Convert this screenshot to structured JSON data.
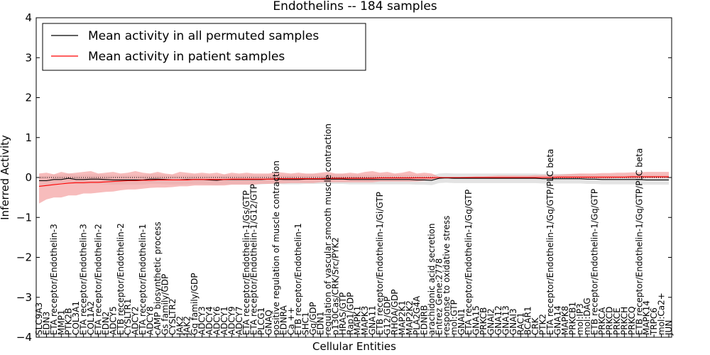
{
  "chart_data": {
    "type": "line",
    "title": "Endothelins -- 184 samples",
    "xlabel": "Cellular Entities",
    "ylabel": "Inferred Activity",
    "ylim": [
      -4,
      4
    ],
    "yticks": [
      -4,
      -3,
      -2,
      -1,
      0,
      1,
      2,
      3,
      4
    ],
    "grid": false,
    "zero_line": "dotted",
    "legend": "top-left",
    "categories": [
      "SLC9A3",
      "EDN3",
      "ETA receptor/Endothelin-3",
      "MMP1",
      "PTK2B",
      "COL3A1",
      "ETA receptor/Endothelin-3",
      "COL1A2",
      "ETA receptor/Endothelin-2",
      "EDN2",
      "ADCY5",
      "ETB receptor/Endothelin-2",
      "CYSLTR1",
      "ADCY2",
      "ETA receptor/Endothelin-1",
      "ADCY8",
      "cAMP biosynthetic process",
      "Gs family/GDP",
      "CYSLTR2",
      "JAK2",
      "JAK2",
      "Gq family/GDP",
      "ADCY3",
      "ADCY4",
      "ADCY6",
      "ADCY1",
      "ADCY9",
      "ADCY7",
      "ETA receptor/Endothelin-1/Gs/GTP",
      "ETA receptor/Endothelin-1/G12/GTP",
      "PLCG1",
      "GNAQ",
      "positive regulation of muscle contraction",
      "EDNRA",
      "Ca ++",
      "ETB receptor/Endothelin-1",
      "SHC1",
      "Gq/GDP",
      "EDN1",
      "regulation of vascular smooth muscle contraction",
      "p130Cas/CRK/Src/PYK2",
      "HRAS/GTP",
      "Rap1/GDP",
      "MAPK1",
      "MAPK3",
      "GNA11",
      "ETB receptor/Endothelin-1/Gi/GTP",
      "G12/GDP",
      "RHOA/GDP",
      "MAP2K1",
      "MAP2K2",
      "PLA2G4A",
      "EDNRB",
      "arachidonic acid secretion",
      "Entrez Gene:2778",
      "response to oxidative stress",
      "mol:GTP",
      "GNAI1",
      "ETA receptor/Endothelin-1/Gq/GTP",
      "GNA15",
      "PRKCB",
      "GNAI2",
      "GNA12",
      "GNA13",
      "GNAI3",
      "RAC1",
      "BCAR1",
      "CRK",
      "PTK2",
      "ETA receptor/Endothelin-1/Gq/GTP/PLC beta",
      "GNA14",
      "MAPK8",
      "PRKCB1",
      "mol:IP3",
      "mol:DAG",
      "ETB receptor/Endothelin-1/Gq/GTP",
      "PRKCA",
      "PRKCD",
      "PRKCE",
      "PRKCH",
      "PRKCQ",
      "ETB receptor/Endothelin-1/Gq/GTP/PLC beta",
      "MAPK14",
      "TRPC6",
      "mol:Ca2+",
      "JUN"
    ],
    "series": [
      {
        "name": "Mean activity in all permuted samples",
        "color": "#000000",
        "band_color": "#d0d0d0",
        "values": [
          -0.08,
          -0.08,
          -0.05,
          -0.05,
          -0.02,
          -0.05,
          -0.05,
          -0.04,
          -0.04,
          -0.05,
          -0.06,
          -0.06,
          -0.06,
          -0.06,
          -0.06,
          -0.04,
          -0.04,
          -0.05,
          -0.06,
          -0.06,
          -0.05,
          -0.05,
          -0.05,
          -0.06,
          -0.07,
          -0.05,
          -0.05,
          -0.05,
          -0.05,
          -0.05,
          -0.05,
          -0.04,
          -0.04,
          -0.05,
          -0.05,
          -0.05,
          -0.04,
          -0.04,
          -0.04,
          -0.04,
          -0.04,
          -0.04,
          -0.05,
          -0.05,
          -0.05,
          -0.05,
          -0.05,
          -0.05,
          -0.05,
          -0.05,
          -0.05,
          -0.06,
          -0.06,
          -0.07,
          -0.02,
          -0.01,
          -0.02,
          -0.02,
          -0.02,
          -0.02,
          -0.02,
          -0.02,
          -0.02,
          -0.02,
          -0.02,
          -0.02,
          -0.02,
          -0.02,
          -0.03,
          -0.03,
          -0.03,
          -0.03,
          -0.03,
          -0.03,
          -0.04,
          -0.04,
          -0.05,
          -0.05,
          -0.05,
          -0.05,
          -0.05,
          -0.05,
          -0.06,
          -0.06,
          -0.06,
          -0.06
        ],
        "band": 0.12
      },
      {
        "name": "Mean activity in patient samples",
        "color": "#ff0000",
        "band_color": "#f4a0a0",
        "values": [
          -0.22,
          -0.2,
          -0.18,
          -0.16,
          -0.14,
          -0.13,
          -0.13,
          -0.12,
          -0.12,
          -0.11,
          -0.1,
          -0.09,
          -0.08,
          -0.08,
          -0.07,
          -0.07,
          -0.06,
          -0.06,
          -0.06,
          -0.06,
          -0.06,
          -0.05,
          -0.05,
          -0.05,
          -0.05,
          -0.05,
          -0.04,
          -0.04,
          -0.04,
          -0.04,
          -0.04,
          -0.04,
          -0.03,
          -0.03,
          -0.03,
          -0.03,
          -0.03,
          -0.03,
          -0.03,
          -0.02,
          -0.02,
          -0.02,
          -0.02,
          -0.02,
          -0.02,
          -0.02,
          -0.01,
          -0.01,
          -0.01,
          -0.01,
          -0.01,
          -0.01,
          -0.01,
          -0.01,
          0.0,
          0.0,
          0.0,
          0.0,
          0.0,
          0.0,
          0.0,
          0.0,
          0.0,
          0.0,
          0.0,
          0.0,
          0.0,
          0.0,
          0.0,
          0.0,
          0.01,
          0.01,
          0.01,
          0.01,
          0.01,
          0.01,
          0.01,
          0.01,
          0.01,
          0.01,
          0.02,
          0.02,
          0.02,
          0.02,
          0.02,
          0.02
        ],
        "band_upper": [
          0.1,
          0.12,
          0.08,
          0.14,
          0.1,
          0.12,
          0.14,
          0.16,
          0.1,
          0.12,
          0.14,
          0.1,
          0.12,
          0.16,
          0.12,
          0.1,
          0.14,
          0.1,
          0.08,
          0.14,
          0.12,
          0.1,
          0.12,
          0.1,
          0.12,
          0.08,
          0.12,
          0.1,
          0.12,
          0.1,
          0.1,
          0.1,
          0.14,
          0.12,
          0.1,
          0.12,
          0.1,
          0.1,
          0.12,
          0.14,
          0.1,
          0.1,
          0.12,
          0.1,
          0.14,
          0.16,
          0.12,
          0.14,
          0.1,
          0.12,
          0.16,
          0.1,
          0.12,
          0.1,
          0.02,
          0.0,
          0.0,
          0.01,
          0.02,
          0.03,
          0.03,
          0.04,
          0.05,
          0.05,
          0.05,
          0.05,
          0.05,
          0.06,
          0.06,
          0.06,
          0.07,
          0.08,
          0.09,
          0.1,
          0.1,
          0.1,
          0.11,
          0.11,
          0.12,
          0.12,
          0.13,
          0.13,
          0.14,
          0.14,
          0.14,
          0.14
        ],
        "band_lower": [
          -0.65,
          -0.55,
          -0.5,
          -0.5,
          -0.45,
          -0.45,
          -0.4,
          -0.4,
          -0.38,
          -0.36,
          -0.35,
          -0.32,
          -0.3,
          -0.3,
          -0.28,
          -0.26,
          -0.25,
          -0.25,
          -0.24,
          -0.22,
          -0.22,
          -0.2,
          -0.2,
          -0.2,
          -0.2,
          -0.2,
          -0.18,
          -0.18,
          -0.18,
          -0.18,
          -0.16,
          -0.16,
          -0.15,
          -0.15,
          -0.14,
          -0.14,
          -0.14,
          -0.14,
          -0.12,
          -0.12,
          -0.12,
          -0.12,
          -0.12,
          -0.12,
          -0.12,
          -0.12,
          -0.1,
          -0.1,
          -0.1,
          -0.1,
          -0.1,
          -0.1,
          -0.08,
          -0.06,
          0.0,
          0.0,
          0.0,
          -0.01,
          -0.02,
          -0.02,
          -0.02,
          -0.03,
          -0.03,
          -0.03,
          -0.03,
          -0.03,
          -0.03,
          -0.03,
          -0.03,
          -0.03,
          -0.03,
          -0.03,
          -0.03,
          -0.03,
          -0.03,
          -0.03,
          -0.03,
          -0.03,
          -0.02,
          -0.02,
          -0.02,
          -0.02,
          -0.02,
          -0.02,
          -0.02,
          -0.02
        ]
      }
    ]
  }
}
